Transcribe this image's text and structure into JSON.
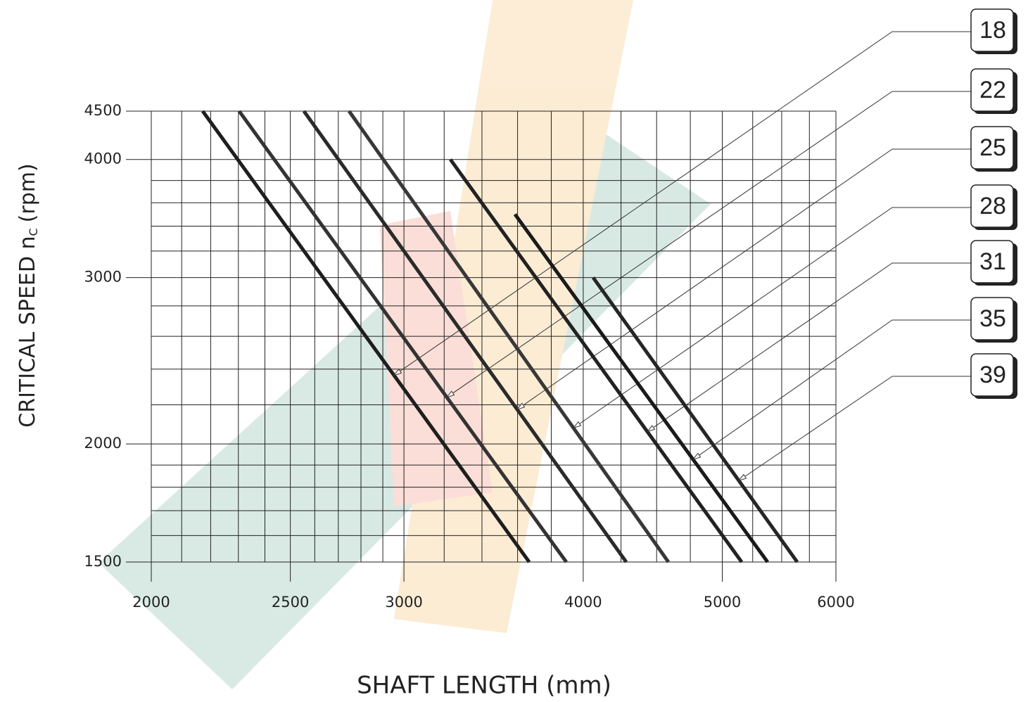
{
  "chart_data": {
    "type": "line",
    "xlabel": "SHAFT LENGTH (mm)",
    "ylabel": [
      "CRITICAL SPEED n",
      "C",
      "(rpm)"
    ],
    "xscale": "log",
    "yscale": "log",
    "grid": true,
    "xlim": [
      2000,
      6000
    ],
    "ylim": [
      1500,
      4500
    ],
    "xticks": [
      2000,
      2500,
      3000,
      4000,
      5000,
      6000
    ],
    "yticks": [
      1500,
      2000,
      3000,
      4000,
      4500
    ],
    "xgrid": [
      2100,
      2200,
      2300,
      2400,
      2600,
      2700,
      2800,
      2900,
      3200,
      3400,
      3600,
      3800,
      4250,
      4500,
      4750,
      5250,
      5500,
      5750
    ],
    "ygrid": [
      1600,
      1700,
      1800,
      1900,
      2200,
      2400,
      2600,
      2800,
      3200,
      3400,
      3600,
      3800
    ],
    "series": [
      {
        "name": "18",
        "color": "#1e1e1e",
        "x": [
          2172,
          3668
        ],
        "values": [
          4500,
          1500
        ]
      },
      {
        "name": "22",
        "color": "#333333",
        "x": [
          2303,
          3893
        ],
        "values": [
          4500,
          1500
        ]
      },
      {
        "name": "25",
        "color": "#2a2a2a",
        "x": [
          2555,
          4286
        ],
        "values": [
          4500,
          1500
        ]
      },
      {
        "name": "28",
        "color": "#383838",
        "x": [
          2747,
          4586
        ],
        "values": [
          4500,
          1500
        ]
      },
      {
        "name": "31",
        "color": "#222222",
        "x": [
          3232,
          5158
        ],
        "values": [
          4000,
          1500
        ]
      },
      {
        "name": "35",
        "color": "#1a1a1a",
        "x": [
          3585,
          5377
        ],
        "values": [
          3500,
          1500
        ]
      },
      {
        "name": "39",
        "color": "#262626",
        "x": [
          4064,
          5639
        ],
        "values": [
          3000,
          1500
        ]
      }
    ]
  }
}
